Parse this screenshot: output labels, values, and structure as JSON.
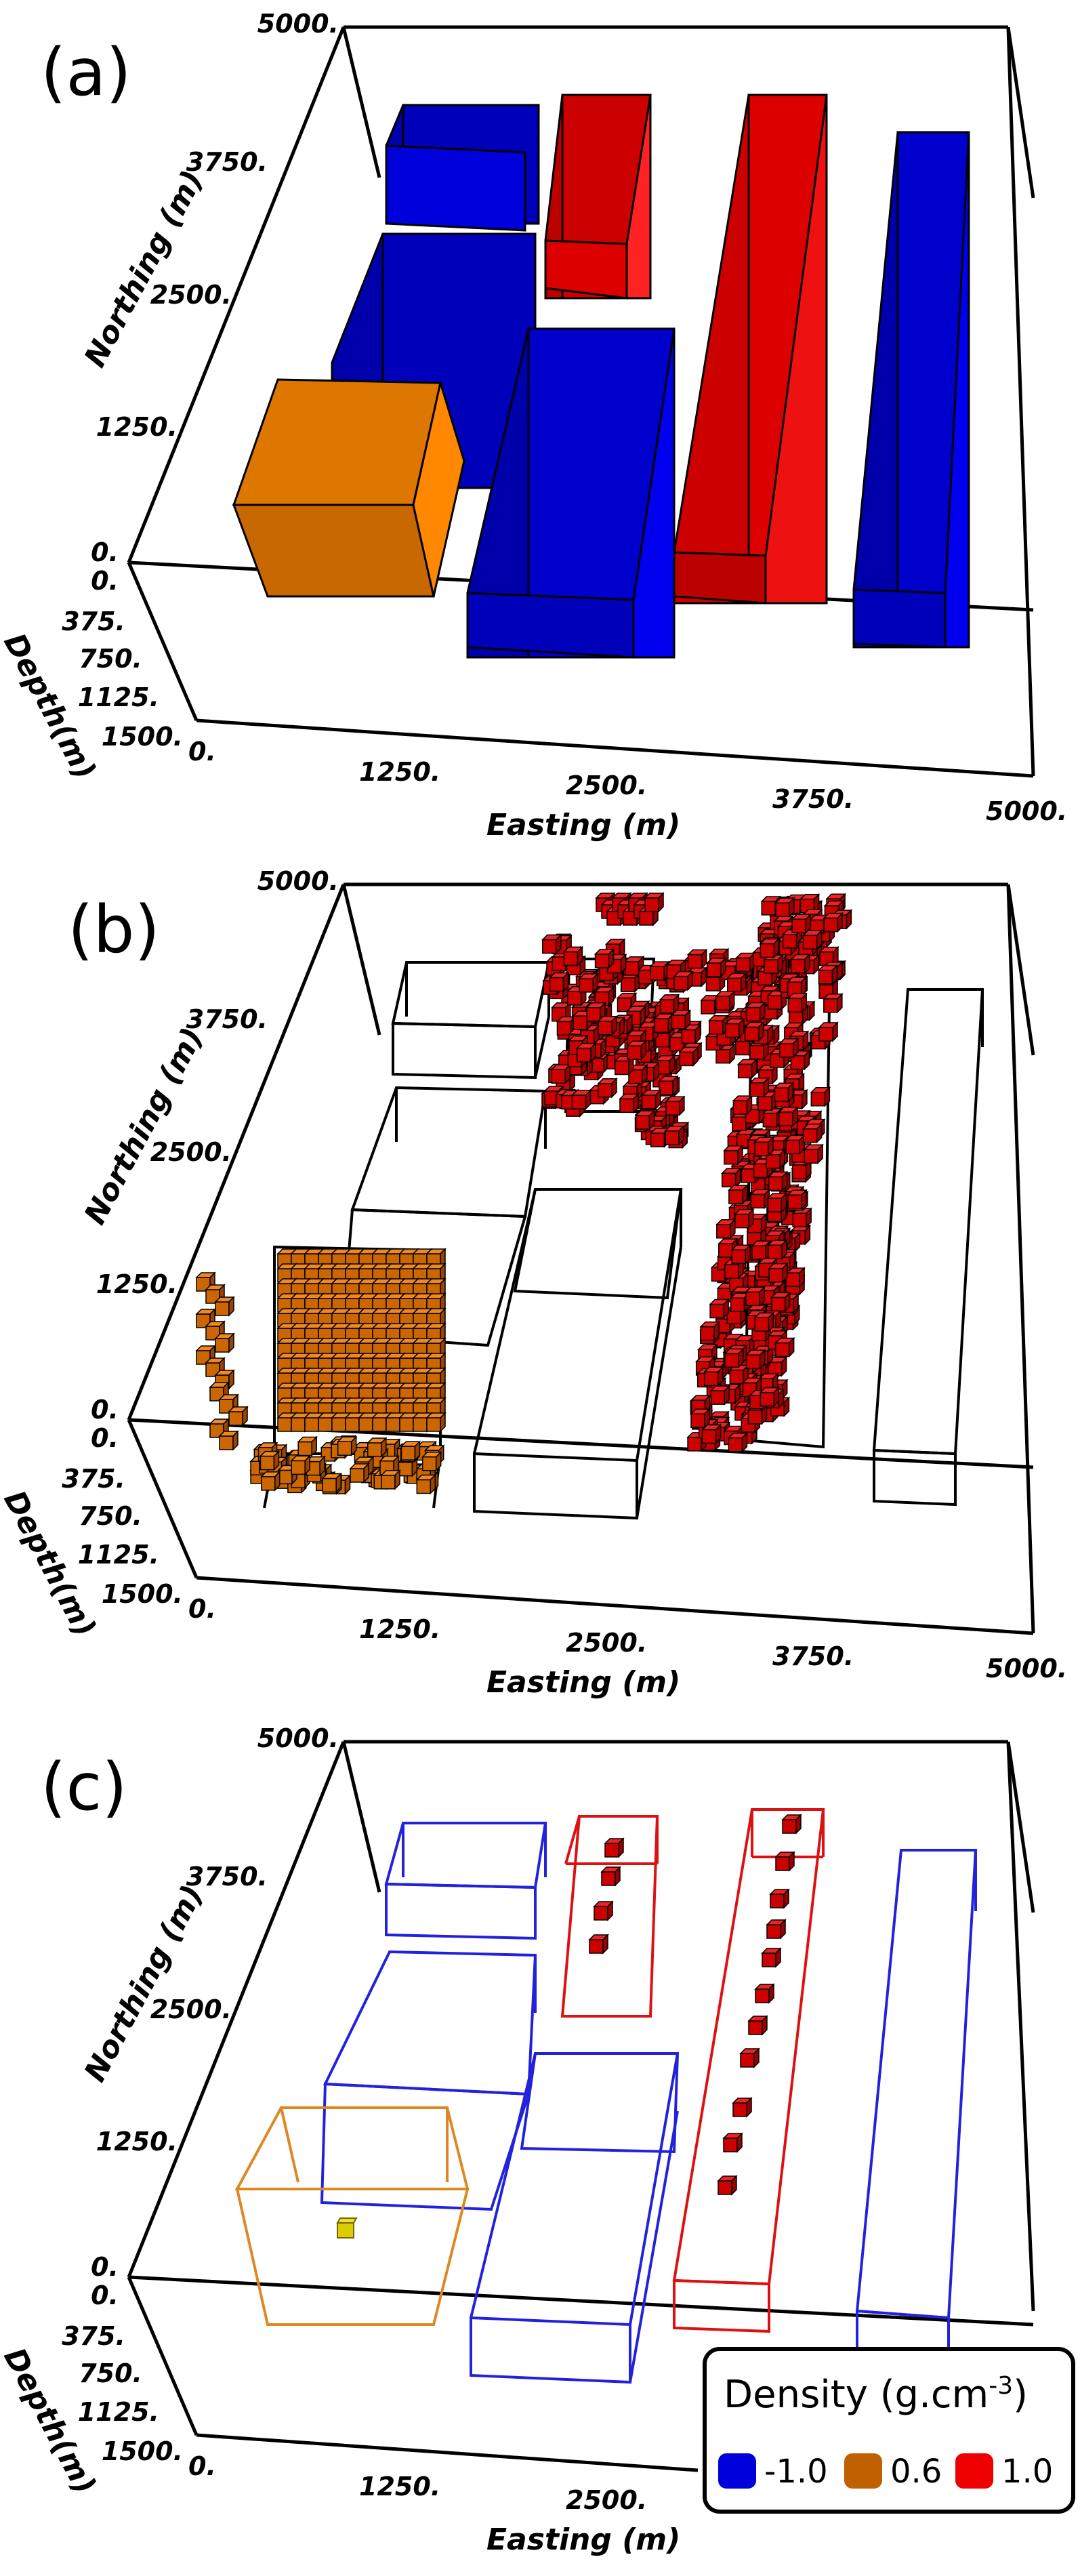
{
  "colors": {
    "negative": "#0000dd",
    "mid": "#ff8000",
    "positive": "#ee0000",
    "outline": "#000000"
  },
  "panels": [
    {
      "label": "(a)",
      "northing_ticks": [
        "5000.",
        "3750.",
        "2500.",
        "1250.",
        "0."
      ],
      "depth_ticks": [
        "0.",
        "375.",
        "750.",
        "1125.",
        "1500."
      ],
      "easting_ticks": [
        "0.",
        "1250.",
        "2500.",
        "3750.",
        "5000."
      ],
      "northing_label": "Northing (m)",
      "depth_label": "Depth(m)",
      "easting_label": "Easting (m)"
    },
    {
      "label": "(b)",
      "northing_ticks": [
        "5000.",
        "3750.",
        "2500.",
        "1250.",
        "0."
      ],
      "depth_ticks": [
        "0.",
        "375.",
        "750.",
        "1125.",
        "1500."
      ],
      "easting_ticks": [
        "0.",
        "1250.",
        "2500.",
        "3750.",
        "5000."
      ],
      "northing_label": "Northing (m)",
      "depth_label": "Depth(m)",
      "easting_label": "Easting (m)"
    },
    {
      "label": "(c)",
      "northing_ticks": [
        "5000.",
        "3750.",
        "2500.",
        "1250.",
        "0."
      ],
      "depth_ticks": [
        "0.",
        "375.",
        "750.",
        "1125.",
        "1500."
      ],
      "easting_ticks": [
        "0.",
        "1250.",
        "2500."
      ],
      "northing_label": "Northing (m)",
      "depth_label": "Depth(m)",
      "easting_label": "Easting (m)"
    }
  ],
  "legend": {
    "title": "Density (g.cm",
    "title_sup": "-3",
    "title_close": ")",
    "entries": [
      {
        "label": "-1.0",
        "color": "#0000dd"
      },
      {
        "label": "0.6",
        "color": "#c06000"
      },
      {
        "label": "1.0",
        "color": "#ee0000"
      }
    ]
  }
}
